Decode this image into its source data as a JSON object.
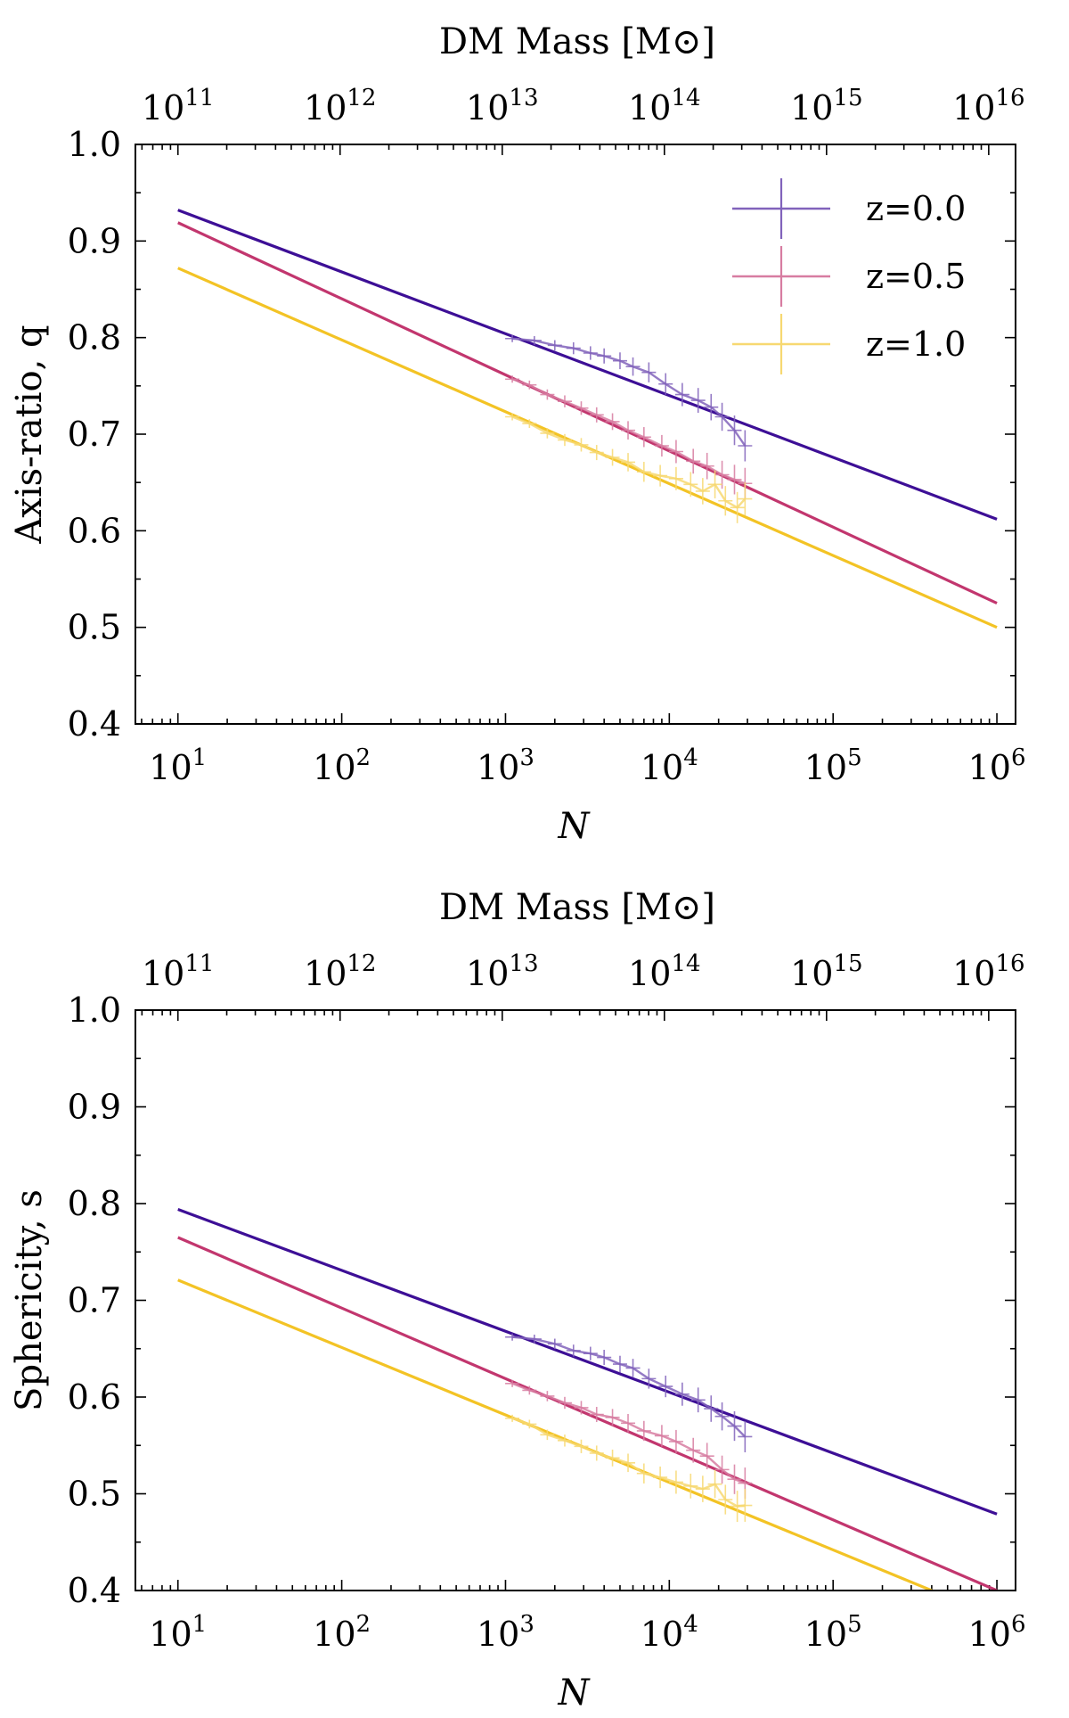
{
  "chart_data": [
    {
      "type": "line",
      "panel": "top",
      "xlabel": "N",
      "ylabel": "Axis-ratio, q",
      "top_xlabel": "DM Mass [M⊙]",
      "xscale": "log",
      "xlim": [
        5.5,
        1300000
      ],
      "ylim": [
        0.4,
        1.0
      ],
      "yticks": [
        "0.4",
        "0.5",
        "0.6",
        "0.7",
        "0.8",
        "0.9",
        "1.0"
      ],
      "xticks": [
        {
          "base": "10",
          "exp": "1"
        },
        {
          "base": "10",
          "exp": "2"
        },
        {
          "base": "10",
          "exp": "3"
        },
        {
          "base": "10",
          "exp": "4"
        },
        {
          "base": "10",
          "exp": "5"
        },
        {
          "base": "10",
          "exp": "6"
        }
      ],
      "top_xticks": [
        {
          "base": "10",
          "exp": "11"
        },
        {
          "base": "10",
          "exp": "12"
        },
        {
          "base": "10",
          "exp": "13"
        },
        {
          "base": "10",
          "exp": "14"
        },
        {
          "base": "10",
          "exp": "15"
        },
        {
          "base": "10",
          "exp": "16"
        }
      ],
      "legend": "top-right",
      "series": [
        {
          "name": "z=0.0",
          "color": "#3d0f96",
          "fit": {
            "x": [
              10,
              1000000
            ],
            "y": [
              0.932,
              0.612
            ]
          },
          "points": {
            "x": [
              1100,
              1500,
              2000,
              2600,
              3300,
              4000,
              5000,
              6000,
              7500,
              9500,
              12000,
              15000,
              18000,
              21000,
              25000,
              29000
            ],
            "y": [
              0.799,
              0.797,
              0.792,
              0.789,
              0.784,
              0.781,
              0.776,
              0.77,
              0.764,
              0.752,
              0.741,
              0.735,
              0.728,
              0.718,
              0.704,
              0.688
            ]
          }
        },
        {
          "name": "z=0.5",
          "color": "#c2366e",
          "fit": {
            "x": [
              10,
              1000000
            ],
            "y": [
              0.919,
              0.525
            ]
          },
          "points": {
            "x": [
              1100,
              1400,
              1800,
              2300,
              2900,
              3600,
              4500,
              5600,
              7000,
              9000,
              11000,
              14000,
              17000,
              21000,
              25000,
              29000
            ],
            "y": [
              0.757,
              0.751,
              0.741,
              0.734,
              0.727,
              0.72,
              0.713,
              0.704,
              0.697,
              0.688,
              0.682,
              0.672,
              0.667,
              0.658,
              0.653,
              0.649
            ]
          }
        },
        {
          "name": "z=1.0",
          "color": "#f3c325",
          "fit": {
            "x": [
              10,
              1000000
            ],
            "y": [
              0.872,
              0.5
            ]
          },
          "points": {
            "x": [
              1100,
              1400,
              1800,
              2300,
              2900,
              3600,
              4500,
              5600,
              7000,
              8800,
              11000,
              13500,
              16000,
              19000,
              22000,
              26000,
              29000
            ],
            "y": [
              0.718,
              0.711,
              0.701,
              0.694,
              0.689,
              0.681,
              0.676,
              0.671,
              0.661,
              0.657,
              0.654,
              0.648,
              0.641,
              0.648,
              0.631,
              0.624,
              0.633
            ]
          }
        }
      ]
    },
    {
      "type": "line",
      "panel": "bottom",
      "xlabel": "N",
      "ylabel": "Sphericity, s",
      "top_xlabel": "DM Mass [M⊙]",
      "xscale": "log",
      "xlim": [
        5.5,
        1300000
      ],
      "ylim": [
        0.4,
        1.0
      ],
      "yticks": [
        "0.4",
        "0.5",
        "0.6",
        "0.7",
        "0.8",
        "0.9",
        "1.0"
      ],
      "xticks": [
        {
          "base": "10",
          "exp": "1"
        },
        {
          "base": "10",
          "exp": "2"
        },
        {
          "base": "10",
          "exp": "3"
        },
        {
          "base": "10",
          "exp": "4"
        },
        {
          "base": "10",
          "exp": "5"
        },
        {
          "base": "10",
          "exp": "6"
        }
      ],
      "top_xticks": [
        {
          "base": "10",
          "exp": "11"
        },
        {
          "base": "10",
          "exp": "12"
        },
        {
          "base": "10",
          "exp": "13"
        },
        {
          "base": "10",
          "exp": "14"
        },
        {
          "base": "10",
          "exp": "15"
        },
        {
          "base": "10",
          "exp": "16"
        }
      ],
      "series": [
        {
          "name": "z=0.0",
          "color": "#3d0f96",
          "fit": {
            "x": [
              10,
              1000000
            ],
            "y": [
              0.794,
              0.479
            ]
          },
          "points": {
            "x": [
              1100,
              1500,
              2000,
              2600,
              3300,
              4000,
              5000,
              6000,
              7500,
              9500,
              12000,
              15000,
              18000,
              21000,
              25000,
              29000
            ],
            "y": [
              0.662,
              0.66,
              0.655,
              0.648,
              0.645,
              0.641,
              0.634,
              0.63,
              0.619,
              0.611,
              0.603,
              0.597,
              0.588,
              0.58,
              0.57,
              0.559
            ]
          }
        },
        {
          "name": "z=0.5",
          "color": "#c2366e",
          "fit": {
            "x": [
              10,
              1000000
            ],
            "y": [
              0.765,
              0.4
            ]
          },
          "points": {
            "x": [
              1100,
              1400,
              1800,
              2300,
              2900,
              3600,
              4500,
              5600,
              7000,
              9000,
              11000,
              14000,
              17000,
              21000,
              25000,
              29000
            ],
            "y": [
              0.614,
              0.607,
              0.601,
              0.594,
              0.589,
              0.582,
              0.579,
              0.573,
              0.565,
              0.56,
              0.554,
              0.545,
              0.539,
              0.525,
              0.515,
              0.511
            ]
          }
        },
        {
          "name": "z=1.0",
          "color": "#f3c325",
          "fit": {
            "x": [
              10,
              400000
            ],
            "y": [
              0.721,
              0.4
            ]
          },
          "points": {
            "x": [
              1100,
              1400,
              1800,
              2300,
              2900,
              3600,
              4500,
              5600,
              7000,
              8800,
              11000,
              13500,
              16000,
              19000,
              22000,
              26000,
              29000
            ],
            "y": [
              0.578,
              0.572,
              0.561,
              0.555,
              0.549,
              0.542,
              0.537,
              0.532,
              0.521,
              0.517,
              0.512,
              0.508,
              0.505,
              0.51,
              0.494,
              0.487,
              0.488
            ]
          }
        }
      ]
    }
  ]
}
